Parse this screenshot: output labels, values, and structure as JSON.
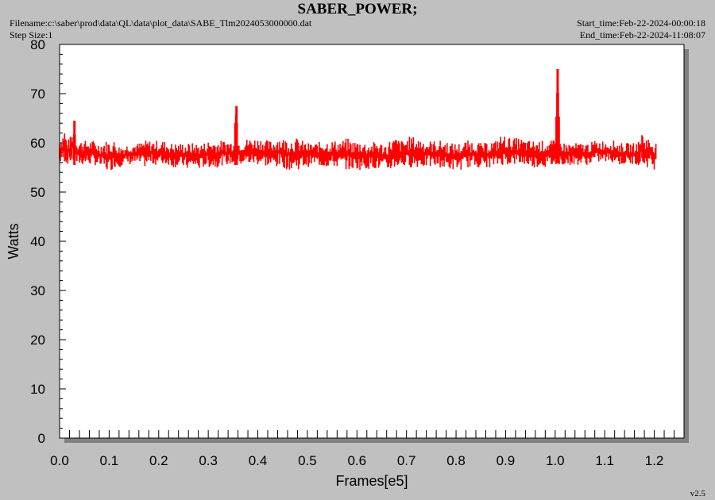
{
  "header": {
    "filename": "Filename:c:\\saber\\prod\\data\\QL\\data\\plot_data\\SABE_Tlm2024053000000.dat",
    "step_size": "Step Size:1",
    "start_time": "Start_time:Feb-22-2024-00:00:18",
    "end_time": "End_time:Feb-22-2024-11:08:07"
  },
  "version": "v2.5",
  "colors": {
    "background": "#c0c0c0",
    "plot_area": "#ffffff",
    "series": "#ff0000",
    "shadow": "#808080"
  },
  "chart_data": {
    "type": "line",
    "title": "SABER_POWER;",
    "xlabel": "Frames[e5]",
    "ylabel": "Watts",
    "xlim": [
      0.0,
      1.26
    ],
    "ylim": [
      0,
      80
    ],
    "xticks": [
      "0.0",
      "0.1",
      "0.2",
      "0.3",
      "0.4",
      "0.5",
      "0.6",
      "0.7",
      "0.8",
      "0.9",
      "1.0",
      "1.1",
      "1.2"
    ],
    "yticks": [
      "0",
      "10",
      "20",
      "30",
      "40",
      "50",
      "60",
      "70",
      "80"
    ],
    "grid": false,
    "series": [
      {
        "color": "#ff0000",
        "x": [
          0.0,
          0.005,
          0.01,
          0.015,
          0.02,
          0.025,
          0.03,
          0.035,
          0.04,
          0.045,
          0.05,
          0.06,
          0.07,
          0.08,
          0.09,
          0.1,
          0.11,
          0.12,
          0.13,
          0.14,
          0.15,
          0.16,
          0.17,
          0.18,
          0.19,
          0.2,
          0.21,
          0.22,
          0.23,
          0.24,
          0.25,
          0.26,
          0.27,
          0.28,
          0.29,
          0.3,
          0.31,
          0.32,
          0.33,
          0.34,
          0.35,
          0.357,
          0.36,
          0.37,
          0.38,
          0.39,
          0.4,
          0.41,
          0.42,
          0.43,
          0.44,
          0.45,
          0.46,
          0.47,
          0.48,
          0.49,
          0.5,
          0.51,
          0.52,
          0.53,
          0.54,
          0.55,
          0.56,
          0.57,
          0.58,
          0.59,
          0.6,
          0.61,
          0.62,
          0.63,
          0.64,
          0.65,
          0.66,
          0.67,
          0.68,
          0.69,
          0.7,
          0.71,
          0.72,
          0.73,
          0.74,
          0.75,
          0.76,
          0.77,
          0.78,
          0.79,
          0.8,
          0.81,
          0.82,
          0.83,
          0.84,
          0.85,
          0.86,
          0.87,
          0.88,
          0.89,
          0.9,
          0.91,
          0.92,
          0.93,
          0.94,
          0.95,
          0.96,
          0.97,
          0.98,
          0.99,
          1.0,
          1.005,
          1.01,
          1.02,
          1.03,
          1.04,
          1.05,
          1.06,
          1.07,
          1.08,
          1.09,
          1.1,
          1.11,
          1.12,
          1.13,
          1.14,
          1.15,
          1.16,
          1.17,
          1.175,
          1.18,
          1.19,
          1.2,
          1.205
        ],
        "ymax": [
          61.0,
          61.5,
          63.0,
          60.5,
          61.0,
          62.0,
          64.5,
          60.5,
          60.5,
          60.5,
          60.5,
          60.5,
          60.5,
          60.0,
          60.5,
          60.5,
          60.5,
          59.5,
          59.5,
          60.0,
          60.0,
          60.0,
          60.5,
          60.5,
          60.5,
          60.5,
          60.5,
          60.0,
          60.0,
          60.0,
          60.0,
          60.0,
          60.0,
          60.0,
          60.0,
          60.5,
          60.5,
          60.5,
          60.5,
          60.5,
          60.5,
          67.5,
          60.5,
          60.5,
          61.0,
          61.0,
          61.0,
          61.0,
          60.5,
          60.5,
          61.5,
          61.0,
          61.0,
          61.0,
          61.0,
          60.5,
          60.0,
          60.0,
          60.0,
          60.5,
          60.5,
          60.5,
          60.5,
          60.5,
          61.0,
          60.5,
          60.5,
          60.5,
          60.0,
          60.0,
          60.5,
          60.0,
          60.0,
          61.0,
          61.0,
          60.5,
          61.0,
          61.5,
          61.0,
          61.0,
          60.5,
          60.5,
          60.5,
          60.5,
          60.5,
          60.0,
          60.0,
          60.0,
          60.5,
          60.5,
          60.5,
          60.0,
          60.0,
          60.5,
          60.5,
          61.5,
          61.5,
          61.0,
          61.0,
          61.0,
          60.5,
          60.5,
          60.5,
          60.5,
          60.5,
          60.5,
          60.5,
          75.0,
          60.5,
          60.0,
          60.0,
          60.0,
          60.0,
          60.0,
          60.0,
          60.5,
          60.5,
          60.5,
          60.5,
          60.5,
          60.0,
          60.0,
          60.0,
          60.0,
          60.5,
          62.5,
          61.5,
          61.0,
          60.5,
          60.0
        ],
        "ymin": [
          55.5,
          56.0,
          56.0,
          55.5,
          56.0,
          56.0,
          55.5,
          55.5,
          55.5,
          55.5,
          55.5,
          55.5,
          55.5,
          55.0,
          54.5,
          54.0,
          55.0,
          55.0,
          55.5,
          55.5,
          55.5,
          55.5,
          55.0,
          55.5,
          55.5,
          55.5,
          55.5,
          55.5,
          55.0,
          55.0,
          55.0,
          54.5,
          55.0,
          54.5,
          55.0,
          55.0,
          55.0,
          55.0,
          55.5,
          55.5,
          55.5,
          55.5,
          55.5,
          55.5,
          55.5,
          55.5,
          55.5,
          55.5,
          55.0,
          55.0,
          55.0,
          55.0,
          54.5,
          54.5,
          54.5,
          55.0,
          55.0,
          55.5,
          55.5,
          55.0,
          55.0,
          55.0,
          55.0,
          55.0,
          54.5,
          54.5,
          54.5,
          54.5,
          54.5,
          55.0,
          54.5,
          54.5,
          54.0,
          54.5,
          55.0,
          55.0,
          55.0,
          55.0,
          55.0,
          55.0,
          55.0,
          55.0,
          55.0,
          55.0,
          54.5,
          54.5,
          54.5,
          54.5,
          55.0,
          55.0,
          55.0,
          55.0,
          55.0,
          55.0,
          55.0,
          55.5,
          55.5,
          55.5,
          55.5,
          55.5,
          55.5,
          55.0,
          55.0,
          55.0,
          55.0,
          55.0,
          55.5,
          56.0,
          55.5,
          55.5,
          55.5,
          55.5,
          55.5,
          55.5,
          55.5,
          56.0,
          56.0,
          56.0,
          56.0,
          56.0,
          55.5,
          55.5,
          55.5,
          55.5,
          55.5,
          55.5,
          55.0,
          55.0,
          54.5,
          55.0
        ]
      }
    ]
  }
}
